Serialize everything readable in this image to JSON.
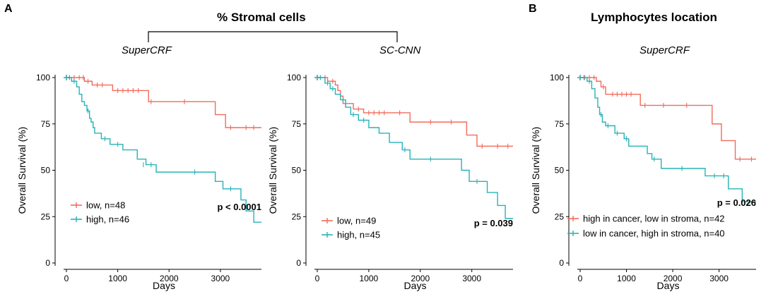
{
  "panel_labels": {
    "a": "A",
    "b": "B"
  },
  "group_titles": {
    "stromal": "% Stromal cells",
    "lymphocytes": "Lymphocytes location"
  },
  "colors": {
    "red": "#F26B5B",
    "teal": "#27B3B8"
  },
  "chart_data": [
    {
      "type": "line",
      "subtitle": "SuperCRF",
      "xlabel": "Days",
      "ylabel": "Overall Survival (%)",
      "xlim": [
        0,
        3800
      ],
      "ylim": [
        0,
        100
      ],
      "xticks": [
        0,
        1000,
        2000,
        3000
      ],
      "xtick_labels": [
        "0",
        "1000",
        "2000",
        "3000"
      ],
      "yticks": [
        0,
        25,
        50,
        75,
        100
      ],
      "ytick_labels": [
        "0",
        "25",
        "50",
        "75",
        "100"
      ],
      "pvalue": "p < 0.0001",
      "series": [
        {
          "name": "low, n=48",
          "color": "#F26B5B",
          "steps": [
            [
              0,
              100
            ],
            [
              350,
              98
            ],
            [
              500,
              96
            ],
            [
              900,
              93
            ],
            [
              1600,
              87
            ],
            [
              2900,
              80
            ],
            [
              3100,
              73
            ],
            [
              3800,
              73
            ]
          ],
          "censors": [
            [
              60,
              100
            ],
            [
              150,
              100
            ],
            [
              250,
              100
            ],
            [
              330,
              100
            ],
            [
              420,
              98
            ],
            [
              600,
              96
            ],
            [
              700,
              96
            ],
            [
              1000,
              93
            ],
            [
              1100,
              93
            ],
            [
              1200,
              93
            ],
            [
              1300,
              93
            ],
            [
              1400,
              93
            ],
            [
              1650,
              87
            ],
            [
              2300,
              87
            ],
            [
              3200,
              73
            ],
            [
              3500,
              73
            ],
            [
              3650,
              73
            ]
          ]
        },
        {
          "name": "high, n=46",
          "color": "#27B3B8",
          "steps": [
            [
              0,
              100
            ],
            [
              100,
              98
            ],
            [
              200,
              95
            ],
            [
              250,
              91
            ],
            [
              300,
              87
            ],
            [
              350,
              85
            ],
            [
              400,
              82
            ],
            [
              450,
              78
            ],
            [
              480,
              76
            ],
            [
              520,
              73
            ],
            [
              550,
              70
            ],
            [
              680,
              67
            ],
            [
              850,
              64
            ],
            [
              1100,
              61
            ],
            [
              1380,
              56
            ],
            [
              1550,
              53
            ],
            [
              1750,
              49
            ],
            [
              2900,
              44
            ],
            [
              3050,
              40
            ],
            [
              3400,
              34
            ],
            [
              3500,
              28
            ],
            [
              3650,
              22
            ],
            [
              3800,
              22
            ]
          ],
          "censors": [
            [
              60,
              100
            ],
            [
              150,
              98
            ],
            [
              420,
              82
            ],
            [
              750,
              67
            ],
            [
              1000,
              64
            ],
            [
              1500,
              53
            ],
            [
              1650,
              53
            ],
            [
              2500,
              49
            ],
            [
              3200,
              40
            ]
          ]
        }
      ]
    },
    {
      "type": "line",
      "subtitle": "SC-CNN",
      "xlabel": "Days",
      "ylabel": "Overall Survival (%)",
      "xlim": [
        0,
        3800
      ],
      "ylim": [
        0,
        100
      ],
      "xticks": [
        0,
        1000,
        2000,
        3000
      ],
      "xtick_labels": [
        "0",
        "1000",
        "2000",
        "3000"
      ],
      "yticks": [
        0,
        25,
        50,
        75,
        100
      ],
      "ytick_labels": [
        "0",
        "25",
        "50",
        "75",
        "100"
      ],
      "pvalue": "p = 0.039",
      "series": [
        {
          "name": "low, n=49",
          "color": "#F26B5B",
          "steps": [
            [
              0,
              100
            ],
            [
              200,
              98
            ],
            [
              350,
              96
            ],
            [
              400,
              93
            ],
            [
              450,
              90
            ],
            [
              500,
              86
            ],
            [
              700,
              83
            ],
            [
              900,
              81
            ],
            [
              1800,
              76
            ],
            [
              2900,
              69
            ],
            [
              3100,
              63
            ],
            [
              3800,
              63
            ]
          ],
          "censors": [
            [
              60,
              100
            ],
            [
              150,
              100
            ],
            [
              300,
              98
            ],
            [
              550,
              86
            ],
            [
              800,
              83
            ],
            [
              1000,
              81
            ],
            [
              1100,
              81
            ],
            [
              1200,
              81
            ],
            [
              1300,
              81
            ],
            [
              1600,
              81
            ],
            [
              2200,
              76
            ],
            [
              2600,
              76
            ],
            [
              3200,
              63
            ],
            [
              3500,
              63
            ],
            [
              3700,
              63
            ]
          ]
        },
        {
          "name": "high, n=45",
          "color": "#27B3B8",
          "steps": [
            [
              0,
              100
            ],
            [
              150,
              97
            ],
            [
              250,
              94
            ],
            [
              350,
              91
            ],
            [
              450,
              88
            ],
            [
              550,
              84
            ],
            [
              650,
              80
            ],
            [
              800,
              77
            ],
            [
              1000,
              73
            ],
            [
              1200,
              70
            ],
            [
              1400,
              65
            ],
            [
              1650,
              61
            ],
            [
              1800,
              56
            ],
            [
              2800,
              50
            ],
            [
              2950,
              44
            ],
            [
              3300,
              38
            ],
            [
              3500,
              31
            ],
            [
              3650,
              24
            ],
            [
              3800,
              24
            ]
          ],
          "censors": [
            [
              60,
              100
            ],
            [
              200,
              97
            ],
            [
              300,
              94
            ],
            [
              500,
              88
            ],
            [
              700,
              80
            ],
            [
              900,
              77
            ],
            [
              1700,
              61
            ],
            [
              2200,
              56
            ],
            [
              3100,
              44
            ]
          ]
        }
      ]
    },
    {
      "type": "line",
      "subtitle": "SuperCRF",
      "xlabel": "Days",
      "ylabel": "Overall Survival (%)",
      "xlim": [
        0,
        3800
      ],
      "ylim": [
        0,
        100
      ],
      "xticks": [
        0,
        1000,
        2000,
        3000
      ],
      "xtick_labels": [
        "0",
        "1000",
        "2000",
        "3000"
      ],
      "yticks": [
        0,
        25,
        50,
        75,
        100
      ],
      "ytick_labels": [
        "0",
        "25",
        "50",
        "75",
        "100"
      ],
      "pvalue": "p = 0.026",
      "series": [
        {
          "name": "high in cancer, low in stroma, n=42",
          "color": "#F26B5B",
          "steps": [
            [
              0,
              100
            ],
            [
              350,
              98
            ],
            [
              450,
              95
            ],
            [
              550,
              91
            ],
            [
              1300,
              85
            ],
            [
              2850,
              75
            ],
            [
              3050,
              66
            ],
            [
              3350,
              56
            ],
            [
              3800,
              56
            ]
          ],
          "censors": [
            [
              100,
              100
            ],
            [
              200,
              100
            ],
            [
              300,
              100
            ],
            [
              500,
              95
            ],
            [
              700,
              91
            ],
            [
              800,
              91
            ],
            [
              900,
              91
            ],
            [
              1000,
              91
            ],
            [
              1100,
              91
            ],
            [
              1400,
              85
            ],
            [
              1800,
              85
            ],
            [
              2300,
              85
            ],
            [
              3450,
              56
            ],
            [
              3700,
              56
            ]
          ]
        },
        {
          "name": "low in cancer, high in stroma, n=40",
          "color": "#27B3B8",
          "steps": [
            [
              0,
              100
            ],
            [
              150,
              98
            ],
            [
              250,
              94
            ],
            [
              320,
              89
            ],
            [
              380,
              84
            ],
            [
              420,
              80
            ],
            [
              480,
              76
            ],
            [
              550,
              74
            ],
            [
              750,
              70
            ],
            [
              950,
              67
            ],
            [
              1050,
              63
            ],
            [
              1450,
              59
            ],
            [
              1550,
              56
            ],
            [
              1750,
              51
            ],
            [
              2700,
              47
            ],
            [
              3200,
              40
            ],
            [
              3500,
              33
            ],
            [
              3800,
              33
            ]
          ],
          "censors": [
            [
              80,
              100
            ],
            [
              200,
              98
            ],
            [
              450,
              80
            ],
            [
              600,
              74
            ],
            [
              800,
              70
            ],
            [
              1000,
              67
            ],
            [
              1600,
              56
            ],
            [
              2200,
              51
            ],
            [
              2900,
              47
            ],
            [
              3100,
              47
            ]
          ]
        }
      ]
    }
  ]
}
